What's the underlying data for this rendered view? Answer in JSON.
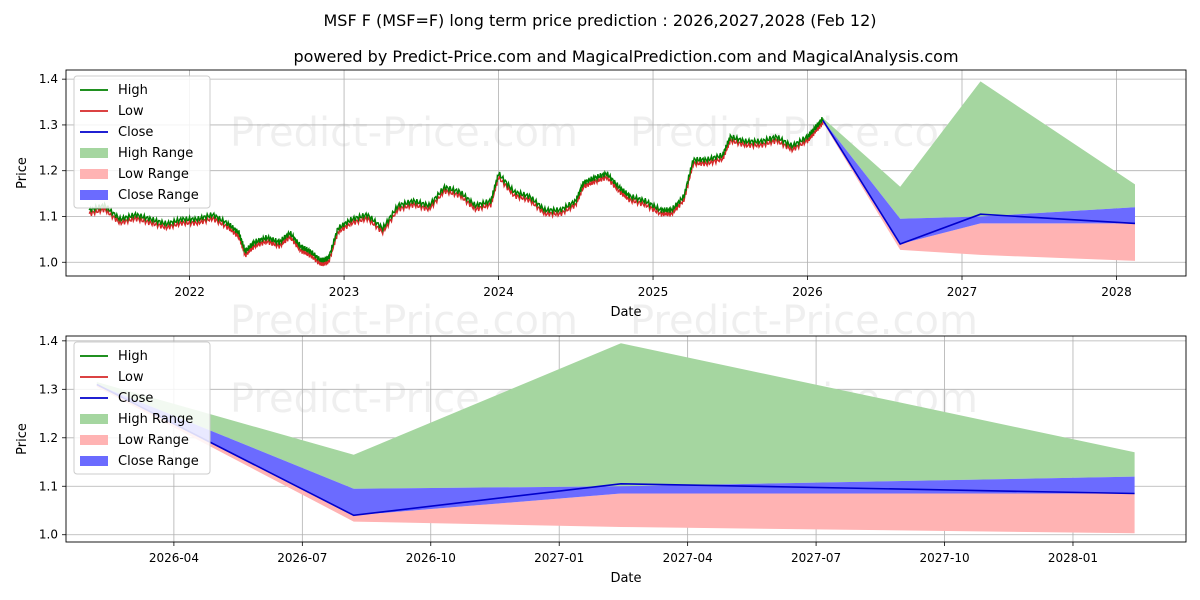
{
  "title": "MSF F (MSF=F) long term price prediction : 2026,2027,2028 (Feb 12)",
  "subtitle": "powered by Predict-Price.com and MagicalPrediction.com and MagicalAnalysis.com",
  "watermark": "Predict-Price.com",
  "colors": {
    "high": "#008000",
    "low": "#d62728",
    "close": "#0000cc",
    "high_range": "#a5d6a0",
    "low_range": "#ffb3b3",
    "close_range": "#6b6bff",
    "grid": "#b0b0b0"
  },
  "chart_data": [
    {
      "type": "line",
      "name": "long_term",
      "xlabel": "Date",
      "ylabel": "Price",
      "xlim": [
        2021.2,
        2028.45
      ],
      "ylim": [
        0.97,
        1.42
      ],
      "xticks": [
        2022,
        2023,
        2024,
        2025,
        2026,
        2027,
        2028
      ],
      "xtick_labels": [
        "2022",
        "2023",
        "2024",
        "2025",
        "2026",
        "2027",
        "2028"
      ],
      "yticks": [
        1.0,
        1.1,
        1.2,
        1.3,
        1.4
      ],
      "ytick_labels": [
        "1.0",
        "1.1",
        "1.2",
        "1.3",
        "1.4"
      ],
      "legend": [
        "High",
        "Low",
        "Close",
        "High Range",
        "Low Range",
        "Close Range"
      ],
      "legend_loc": "upper-left",
      "history": {
        "x": [
          2021.35,
          2021.45,
          2021.55,
          2021.65,
          2021.75,
          2021.85,
          2021.95,
          2022.05,
          2022.15,
          2022.25,
          2022.32,
          2022.36,
          2022.42,
          2022.5,
          2022.58,
          2022.65,
          2022.72,
          2022.78,
          2022.85,
          2022.9,
          2022.96,
          2023.05,
          2023.15,
          2023.25,
          2023.35,
          2023.45,
          2023.55,
          2023.65,
          2023.75,
          2023.85,
          2023.95,
          2024.0,
          2024.1,
          2024.2,
          2024.3,
          2024.4,
          2024.5,
          2024.55,
          2024.62,
          2024.7,
          2024.78,
          2024.85,
          2024.95,
          2025.05,
          2025.12,
          2025.2,
          2025.26,
          2025.35,
          2025.45,
          2025.5,
          2025.6,
          2025.7,
          2025.8,
          2025.9,
          2026.0,
          2026.05,
          2026.1
        ],
        "close": [
          1.11,
          1.12,
          1.09,
          1.1,
          1.09,
          1.08,
          1.09,
          1.09,
          1.1,
          1.08,
          1.06,
          1.02,
          1.04,
          1.05,
          1.04,
          1.06,
          1.03,
          1.02,
          1.0,
          1.005,
          1.07,
          1.09,
          1.1,
          1.07,
          1.12,
          1.13,
          1.12,
          1.16,
          1.15,
          1.12,
          1.13,
          1.19,
          1.15,
          1.14,
          1.11,
          1.11,
          1.13,
          1.17,
          1.18,
          1.19,
          1.16,
          1.14,
          1.13,
          1.11,
          1.11,
          1.14,
          1.22,
          1.22,
          1.23,
          1.27,
          1.26,
          1.26,
          1.27,
          1.25,
          1.27,
          1.29,
          1.31
        ]
      },
      "forecast": {
        "x": [
          2026.1,
          2026.6,
          2027.12,
          2028.12
        ],
        "high_upper": [
          1.315,
          1.165,
          1.395,
          1.17
        ],
        "close_upper": [
          1.31,
          1.095,
          1.1,
          1.12
        ],
        "close_lower": [
          1.31,
          1.04,
          1.085,
          1.085
        ],
        "low_lower": [
          1.305,
          1.027,
          1.016,
          1.003
        ],
        "close": [
          1.31,
          1.04,
          1.105,
          1.085
        ]
      }
    },
    {
      "type": "line",
      "name": "prediction_zoom",
      "xlabel": "Date",
      "ylabel": "Price",
      "xlim": [
        2026.04,
        2028.22
      ],
      "ylim": [
        0.985,
        1.41
      ],
      "xticks": [
        2026.25,
        2026.5,
        2026.75,
        2027.0,
        2027.25,
        2027.5,
        2027.75,
        2028.0
      ],
      "xtick_labels": [
        "2026-04",
        "2026-07",
        "2026-10",
        "2027-01",
        "2027-04",
        "2027-07",
        "2027-10",
        "2028-01"
      ],
      "yticks": [
        1.0,
        1.1,
        1.2,
        1.3,
        1.4
      ],
      "ytick_labels": [
        "1.0",
        "1.1",
        "1.2",
        "1.3",
        "1.4"
      ],
      "legend": [
        "High",
        "Low",
        "Close",
        "High Range",
        "Low Range",
        "Close Range"
      ],
      "legend_loc": "upper-left",
      "forecast": {
        "x": [
          2026.1,
          2026.6,
          2027.12,
          2028.12
        ],
        "high_upper": [
          1.315,
          1.165,
          1.395,
          1.17
        ],
        "close_upper": [
          1.31,
          1.095,
          1.1,
          1.12
        ],
        "close_lower": [
          1.31,
          1.04,
          1.085,
          1.085
        ],
        "low_lower": [
          1.305,
          1.027,
          1.016,
          1.003
        ],
        "close": [
          1.31,
          1.04,
          1.105,
          1.085
        ]
      }
    }
  ]
}
